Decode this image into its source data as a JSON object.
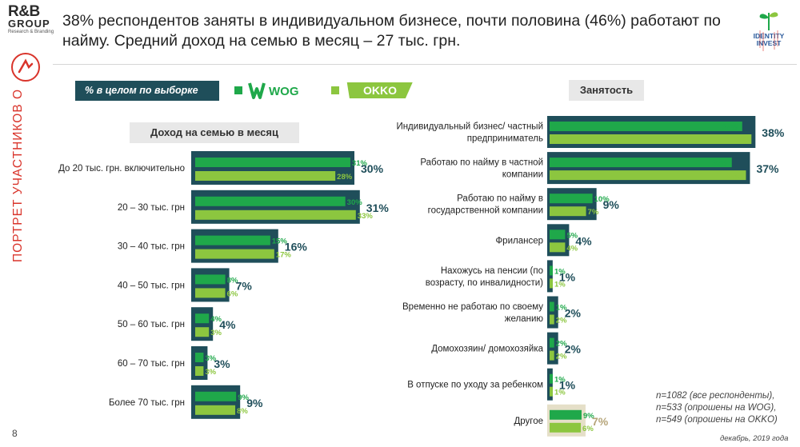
{
  "header": {
    "title": "38% респондентов заняты в индивидуальном бизнесе, почти половина (46%) работают по найму. Средний доход на семью в месяц – 27 тыс. грн."
  },
  "brand": {
    "rb_logo_main": "R&B",
    "rb_logo_sub": "GROUP",
    "rb_logo_tag": "Research & Branding",
    "ii_logo_line1": "IDENTITY",
    "ii_logo_line2": "INVEST"
  },
  "sidebar": {
    "section_label": "ПОРТРЕТ УЧАСТНИКОВ ОПРОСА"
  },
  "legend": {
    "total_label": "% в целом по выборке",
    "wog_label": "WOG",
    "okko_label": "OKKO"
  },
  "colors": {
    "total": "#1f4e5a",
    "wog": "#1fa84a",
    "okko": "#8cc63f",
    "other_total": "#e5dfc8",
    "other_label": "#b6a57a",
    "sidebar_red": "#d9342b"
  },
  "chart_data": [
    {
      "type": "bar",
      "title": "Доход на семью в месяц",
      "categories": [
        "До 20 тыс. грн. включительно",
        "20 – 30 тыс. грн",
        "30 – 40 тыс. грн",
        "40 – 50 тыс. грн",
        "50 – 60 тыс. грн",
        "60 – 70 тыс. грн",
        "Более 70 тыс. грн"
      ],
      "series": [
        {
          "name": "% в целом по выборке",
          "values": [
            30,
            31,
            16,
            7,
            4,
            3,
            9
          ]
        },
        {
          "name": "WOG",
          "values": [
            31,
            30,
            15,
            8,
            4,
            3,
            9
          ]
        },
        {
          "name": "OKKO",
          "values": [
            28,
            33,
            17,
            6,
            3,
            3,
            8
          ]
        }
      ],
      "unit": "%"
    },
    {
      "type": "bar",
      "title": "Занятость",
      "categories": [
        "Индивидуальный бизнес/ частный предприниматель",
        "Работаю по найму в частной компании",
        "Работаю по найму в государственной компании",
        "Фрилансер",
        "Нахожусь на пенсии (по возрасту, по инвалидности)",
        "Временно не работаю по своему желанию",
        "Домохозяин/ домохозяйка",
        "В отпуске по уходу за ребенком",
        "Другое"
      ],
      "series": [
        {
          "name": "% в целом по выборке",
          "values": [
            38,
            37,
            9,
            4,
            1,
            2,
            2,
            1,
            7
          ]
        },
        {
          "name": "WOG",
          "values": [
            37,
            35,
            10,
            5,
            1,
            1,
            2,
            1,
            9
          ]
        },
        {
          "name": "OKKO",
          "values": [
            39,
            39,
            7,
            4,
            1,
            2,
            2,
            1,
            6
          ]
        }
      ],
      "unit": "%"
    }
  ],
  "footer": {
    "note_lines": [
      "n=1082 (все респонденты),",
      "n=533 (опрошены на WOG),",
      "n=549 (опрошены на OKKO)"
    ],
    "date": "декабрь, 2019 года",
    "page_number": "8"
  }
}
